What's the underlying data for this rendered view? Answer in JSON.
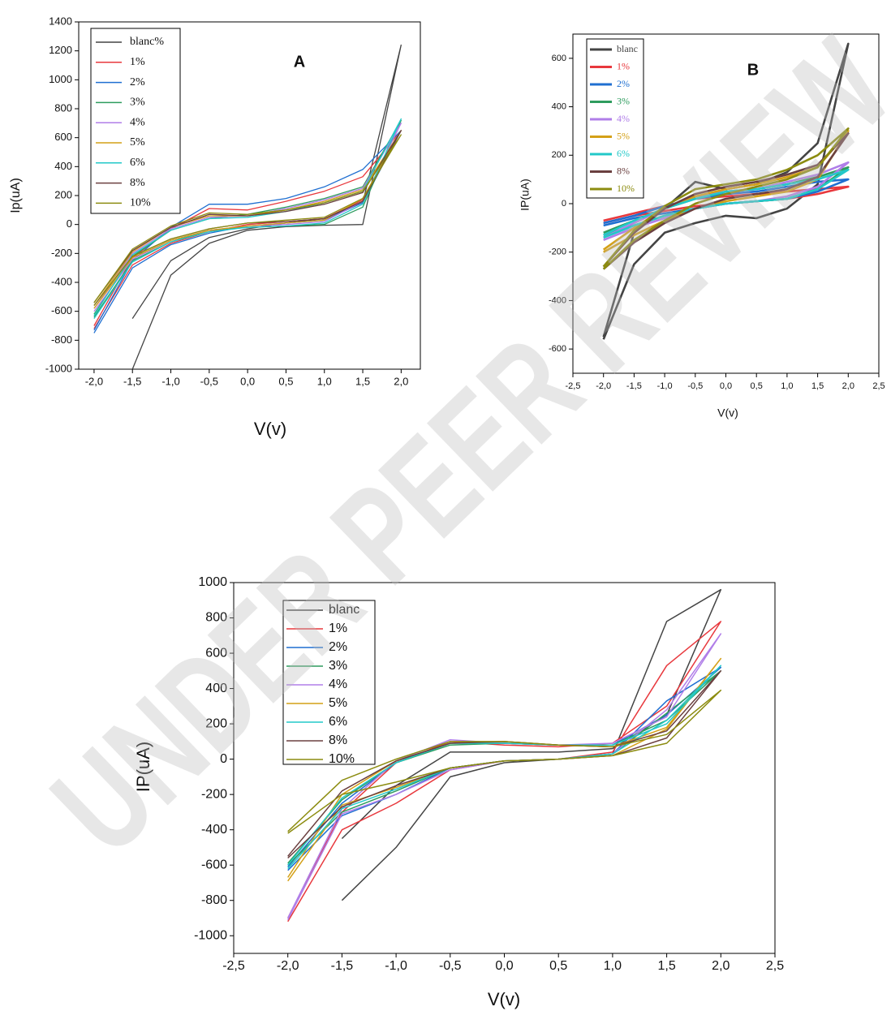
{
  "watermark": "UNDER PEER REVIEW",
  "chart_data": [
    {
      "type": "line",
      "annotation": "A",
      "x_label": "V(v)",
      "y_label": "Ip(uA)",
      "xlim": [
        -2.2,
        2.25
      ],
      "ylim": [
        -1000,
        1400
      ],
      "xticks": [
        {
          "value": -2,
          "label": "-2,0"
        },
        {
          "value": -1.5,
          "label": "-1,5"
        },
        {
          "value": -1,
          "label": "-1,0"
        },
        {
          "value": -0.5,
          "label": "-0,5"
        },
        {
          "value": 0,
          "label": "0,0"
        },
        {
          "value": 0.5,
          "label": "0,5"
        },
        {
          "value": 1,
          "label": "1,0"
        },
        {
          "value": 1.5,
          "label": "1,5"
        },
        {
          "value": 2,
          "label": "2,0"
        }
      ],
      "yticks": [
        -1000,
        -800,
        -600,
        -400,
        -200,
        0,
        200,
        400,
        600,
        800,
        1000,
        1200,
        1400
      ],
      "x": [
        -2,
        -1.5,
        -1,
        -0.5,
        0,
        0.5,
        1,
        1.5,
        2,
        1.5,
        1,
        0.5,
        0,
        -0.5,
        -1,
        -1.5,
        -2
      ],
      "series": [
        {
          "name": "blanc%",
          "color": "#444444",
          "values": [
            null,
            -1000,
            -350,
            -130,
            -40,
            -15,
            -5,
            0,
            1240,
            150,
            40,
            10,
            -30,
            -90,
            -250,
            -650,
            null
          ]
        },
        {
          "name": "1%",
          "color": "#e8383d",
          "values": [
            -720,
            -280,
            -130,
            -50,
            0,
            20,
            40,
            170,
            650,
            330,
            230,
            160,
            100,
            110,
            -30,
            -230,
            -700
          ]
        },
        {
          "name": "2%",
          "color": "#1f6fd1",
          "values": [
            -750,
            -300,
            -140,
            -60,
            -10,
            10,
            30,
            150,
            650,
            380,
            260,
            180,
            140,
            140,
            -20,
            -250,
            -730
          ]
        },
        {
          "name": "3%",
          "color": "#2e9c5e",
          "values": [
            -640,
            -250,
            -120,
            -40,
            -20,
            -10,
            0,
            120,
            720,
            260,
            180,
            120,
            70,
            40,
            -40,
            -220,
            -620
          ]
        },
        {
          "name": "4%",
          "color": "#b07ee8",
          "values": [
            -600,
            -240,
            -110,
            -40,
            -10,
            0,
            20,
            160,
            700,
            250,
            170,
            110,
            60,
            50,
            -30,
            -200,
            -580
          ]
        },
        {
          "name": "5%",
          "color": "#d4a017",
          "values": [
            -580,
            -230,
            -110,
            -40,
            -10,
            10,
            30,
            180,
            650,
            240,
            160,
            100,
            60,
            60,
            -20,
            -190,
            -560
          ]
        },
        {
          "name": "6%",
          "color": "#22c8c8",
          "values": [
            -650,
            -260,
            -120,
            -50,
            -20,
            -10,
            10,
            140,
            730,
            230,
            150,
            90,
            50,
            40,
            -40,
            -210,
            -630
          ]
        },
        {
          "name": "8%",
          "color": "#6b4040",
          "values": [
            -560,
            -220,
            -100,
            -30,
            10,
            20,
            40,
            160,
            650,
            220,
            140,
            90,
            60,
            70,
            -20,
            -180,
            -540
          ]
        },
        {
          "name": "10%",
          "color": "#8c8c10",
          "values": [
            -560,
            -220,
            -100,
            -30,
            10,
            30,
            50,
            180,
            620,
            230,
            150,
            100,
            70,
            80,
            -10,
            -170,
            -540
          ]
        }
      ]
    },
    {
      "type": "line",
      "annotation": "B",
      "x_label": "V(v)",
      "y_label": "IP(uA)",
      "xlim": [
        -2.5,
        2.5
      ],
      "ylim": [
        -700,
        700
      ],
      "xticks": [
        {
          "value": -2.5,
          "label": "-2,5"
        },
        {
          "value": -2,
          "label": "-2,0"
        },
        {
          "value": -1.5,
          "label": "-1,5"
        },
        {
          "value": -1,
          "label": "-1,0"
        },
        {
          "value": -0.5,
          "label": "-0,5"
        },
        {
          "value": 0,
          "label": "0,0"
        },
        {
          "value": 0.5,
          "label": "0,5"
        },
        {
          "value": 1,
          "label": "1,0"
        },
        {
          "value": 1.5,
          "label": "1,5"
        },
        {
          "value": 2,
          "label": "2,0"
        },
        {
          "value": 2.5,
          "label": "2,5"
        }
      ],
      "yticks": [
        -600,
        -400,
        -200,
        0,
        200,
        400,
        600
      ],
      "x": [
        -2,
        -1.5,
        -1,
        -0.5,
        0,
        0.5,
        1,
        1.5,
        2,
        1.5,
        1,
        0.5,
        0,
        -0.5,
        -1,
        -1.5,
        -2
      ],
      "series": [
        {
          "name": "blanc",
          "color": "#444444",
          "values": [
            -560,
            -250,
            -120,
            -80,
            -50,
            -60,
            -20,
            80,
            660,
            250,
            130,
            80,
            60,
            90,
            -20,
            -120,
            -550
          ]
        },
        {
          "name": "1%",
          "color": "#e8383d",
          "values": [
            -80,
            -50,
            -30,
            -10,
            0,
            10,
            20,
            40,
            70,
            60,
            50,
            40,
            30,
            20,
            -10,
            -40,
            -70
          ]
        },
        {
          "name": "2%",
          "color": "#1f6fd1",
          "values": [
            -90,
            -60,
            -40,
            -20,
            0,
            10,
            20,
            50,
            100,
            90,
            70,
            50,
            40,
            20,
            -10,
            -50,
            -80
          ]
        },
        {
          "name": "3%",
          "color": "#2e9c5e",
          "values": [
            -130,
            -90,
            -50,
            -20,
            0,
            10,
            20,
            60,
            150,
            110,
            80,
            60,
            50,
            20,
            -20,
            -70,
            -120
          ]
        },
        {
          "name": "4%",
          "color": "#b07ee8",
          "values": [
            -150,
            -100,
            -60,
            -20,
            0,
            10,
            30,
            70,
            170,
            120,
            90,
            60,
            50,
            30,
            -20,
            -80,
            -140
          ]
        },
        {
          "name": "5%",
          "color": "#d4a017",
          "values": [
            -200,
            -130,
            -70,
            -20,
            10,
            30,
            50,
            100,
            300,
            150,
            110,
            80,
            60,
            30,
            -20,
            -100,
            -190
          ]
        },
        {
          "name": "6%",
          "color": "#22c8c8",
          "values": [
            -140,
            -90,
            -50,
            -20,
            0,
            10,
            20,
            60,
            140,
            100,
            80,
            60,
            50,
            20,
            -20,
            -70,
            -130
          ]
        },
        {
          "name": "8%",
          "color": "#6b4040",
          "values": [
            -270,
            -160,
            -80,
            -20,
            20,
            40,
            60,
            110,
            290,
            160,
            120,
            90,
            70,
            40,
            -20,
            -120,
            -260
          ]
        },
        {
          "name": "10%",
          "color": "#8c8c10",
          "values": [
            -270,
            -150,
            -70,
            0,
            40,
            70,
            100,
            150,
            310,
            200,
            140,
            100,
            80,
            60,
            -10,
            -110,
            -260
          ]
        }
      ]
    },
    {
      "type": "line",
      "x_label": "V(v)",
      "y_label": "IP(uA)",
      "xlim": [
        -2.5,
        2.5
      ],
      "ylim": [
        -1100,
        1000
      ],
      "xticks": [
        {
          "value": -2.5,
          "label": "-2,5"
        },
        {
          "value": -2,
          "label": "-2,0"
        },
        {
          "value": -1.5,
          "label": "-1,5"
        },
        {
          "value": -1,
          "label": "-1,0"
        },
        {
          "value": -0.5,
          "label": "-0,5"
        },
        {
          "value": 0,
          "label": "0,0"
        },
        {
          "value": 0.5,
          "label": "0,5"
        },
        {
          "value": 1,
          "label": "1,0"
        },
        {
          "value": 1.5,
          "label": "1,5"
        },
        {
          "value": 2,
          "label": "2,0"
        },
        {
          "value": 2.5,
          "label": "2,5"
        }
      ],
      "yticks": [
        -1000,
        -800,
        -600,
        -400,
        -200,
        0,
        200,
        400,
        600,
        800,
        1000
      ],
      "x": [
        -2,
        -1.5,
        -1,
        -0.5,
        0,
        0.5,
        1,
        1.5,
        2,
        1.5,
        1,
        0.5,
        0,
        -0.5,
        -1,
        -1.5,
        -2
      ],
      "series": [
        {
          "name": "blanc",
          "color": "#444444",
          "values": [
            null,
            -800,
            -500,
            -100,
            -20,
            0,
            30,
            780,
            960,
            250,
            60,
            40,
            40,
            40,
            -150,
            -450,
            null
          ]
        },
        {
          "name": "1%",
          "color": "#e8383d",
          "values": [
            -920,
            -400,
            -250,
            -60,
            -10,
            0,
            40,
            530,
            780,
            300,
            90,
            70,
            80,
            100,
            -20,
            -300,
            -900
          ]
        },
        {
          "name": "2%",
          "color": "#1f6fd1",
          "values": [
            -630,
            -320,
            -200,
            -50,
            -10,
            0,
            30,
            330,
            520,
            250,
            80,
            80,
            90,
            90,
            -20,
            -250,
            -610
          ]
        },
        {
          "name": "3%",
          "color": "#2e9c5e",
          "values": [
            -600,
            -300,
            -180,
            -50,
            -10,
            0,
            30,
            260,
            500,
            220,
            80,
            80,
            90,
            80,
            -20,
            -230,
            -590
          ]
        },
        {
          "name": "4%",
          "color": "#b07ee8",
          "values": [
            -910,
            -310,
            -200,
            -60,
            -10,
            0,
            30,
            280,
            710,
            240,
            90,
            80,
            90,
            110,
            -10,
            -280,
            -900
          ]
        },
        {
          "name": "5%",
          "color": "#d4a017",
          "values": [
            -690,
            -260,
            -160,
            -50,
            -10,
            0,
            20,
            170,
            570,
            180,
            70,
            80,
            100,
            90,
            -10,
            -200,
            -670
          ]
        },
        {
          "name": "6%",
          "color": "#22c8c8",
          "values": [
            -620,
            -280,
            -170,
            -50,
            -10,
            0,
            30,
            220,
            530,
            200,
            80,
            80,
            90,
            90,
            -20,
            -220,
            -600
          ]
        },
        {
          "name": "8%",
          "color": "#6b4040",
          "values": [
            -560,
            -270,
            -150,
            -50,
            -10,
            0,
            20,
            120,
            500,
            160,
            70,
            80,
            100,
            90,
            -10,
            -180,
            -550
          ]
        },
        {
          "name": "10%",
          "color": "#8c8c10",
          "values": [
            -420,
            -200,
            -130,
            -50,
            -10,
            0,
            20,
            90,
            390,
            140,
            70,
            80,
            100,
            100,
            0,
            -120,
            -410
          ]
        }
      ]
    }
  ]
}
